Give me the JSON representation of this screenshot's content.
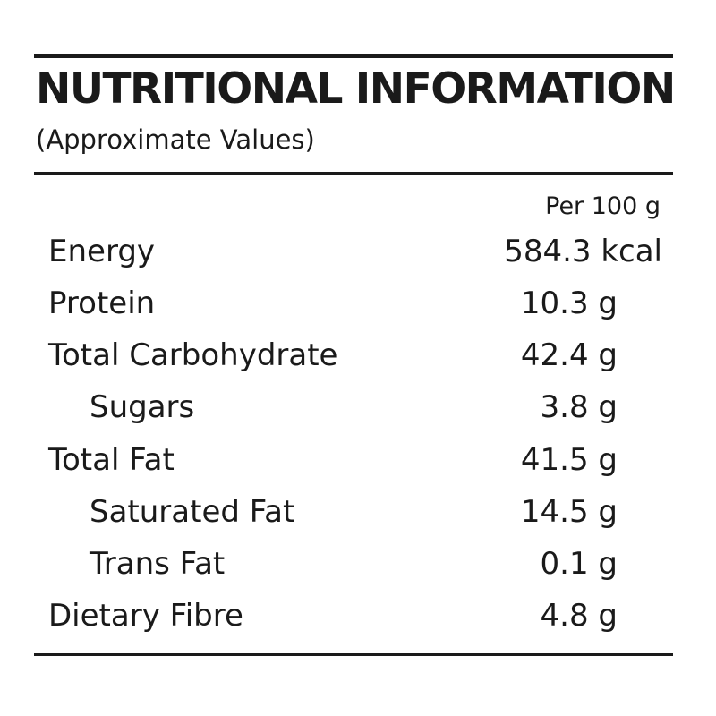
{
  "label": {
    "title": "NUTRITIONAL INFORMATION",
    "subtitle": "(Approximate Values)",
    "column_header": "Per 100 g",
    "rows": [
      {
        "name": "Energy",
        "value": "584.3 kcal"
      },
      {
        "name": "Protein",
        "value": "10.3 g"
      },
      {
        "name": "Total Carbohydrate",
        "value": "42.4 g"
      },
      {
        "name": "Sugars",
        "value": "3.8 g"
      },
      {
        "name": "Total Fat",
        "value": "41.5 g"
      },
      {
        "name": "Saturated Fat",
        "value": "14.5 g"
      },
      {
        "name": "Trans Fat",
        "value": "0.1 g"
      },
      {
        "name": "Dietary Fibre",
        "value": "4.8 g"
      }
    ]
  }
}
